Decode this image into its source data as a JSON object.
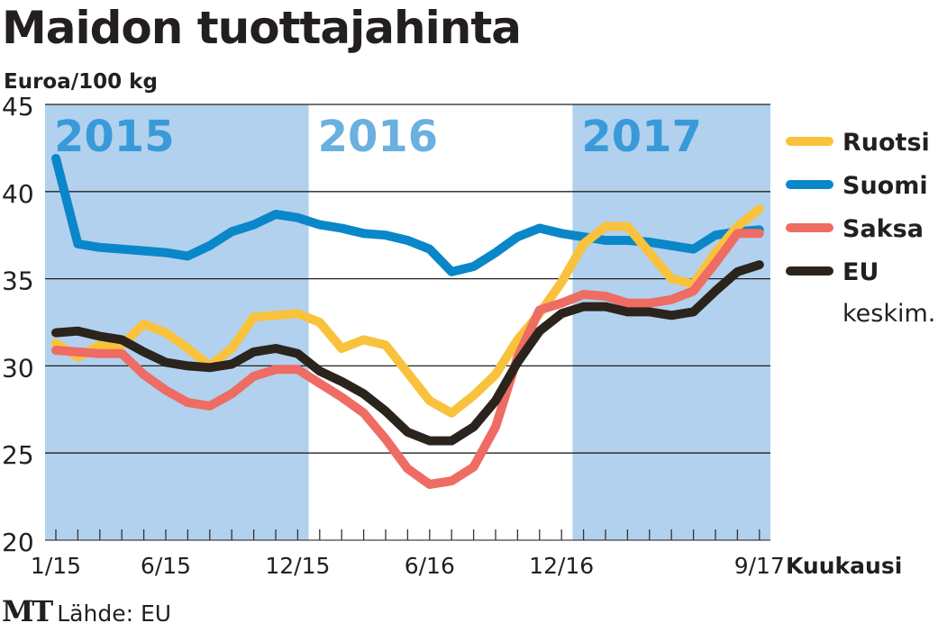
{
  "chart_data": {
    "type": "line",
    "title": "Maidon tuottajahinta",
    "ylabel": "Euroa/100 kg",
    "xlabel": "Kuukausi",
    "ylim": [
      20,
      45
    ],
    "yticks": [
      20,
      25,
      30,
      35,
      40,
      45
    ],
    "grid": true,
    "x_tick_labels": [
      {
        "index": 0,
        "label": "1/15"
      },
      {
        "index": 5,
        "label": "6/15"
      },
      {
        "index": 11,
        "label": "12/15"
      },
      {
        "index": 17,
        "label": "6/16"
      },
      {
        "index": 23,
        "label": "12/16"
      },
      {
        "index": 32,
        "label": "9/17"
      }
    ],
    "year_bands": [
      {
        "label": "2015",
        "start": 0,
        "end": 11,
        "shaded": true
      },
      {
        "label": "2016",
        "start": 12,
        "end": 23,
        "shaded": false
      },
      {
        "label": "2017",
        "start": 24,
        "end": 32,
        "shaded": true
      }
    ],
    "legend_position": "right",
    "series": [
      {
        "name": "Ruotsi",
        "color": "#f9c23c",
        "values": [
          31.3,
          30.5,
          31.2,
          31.2,
          32.4,
          31.9,
          31.0,
          30.0,
          31.0,
          32.8,
          32.9,
          33.0,
          32.5,
          31.0,
          31.5,
          31.2,
          29.6,
          28.0,
          27.3,
          28.3,
          29.5,
          31.5,
          33.0,
          34.8,
          37.0,
          38.0,
          38.0,
          36.5,
          35.0,
          34.7,
          36.5,
          38.0,
          39.0
        ]
      },
      {
        "name": "Suomi",
        "color": "#0a87c9",
        "values": [
          41.9,
          37.0,
          36.8,
          36.7,
          36.6,
          36.5,
          36.3,
          36.9,
          37.7,
          38.1,
          38.7,
          38.5,
          38.1,
          37.9,
          37.6,
          37.5,
          37.2,
          36.7,
          35.4,
          35.7,
          36.5,
          37.4,
          37.9,
          37.6,
          37.4,
          37.2,
          37.2,
          37.1,
          36.9,
          36.7,
          37.5,
          37.7,
          37.8
        ]
      },
      {
        "name": "Saksa",
        "color": "#ee6c63",
        "values": [
          30.9,
          30.8,
          30.7,
          30.7,
          29.5,
          28.6,
          27.9,
          27.7,
          28.4,
          29.4,
          29.8,
          29.8,
          29.0,
          28.2,
          27.3,
          25.8,
          24.1,
          23.2,
          23.4,
          24.2,
          26.5,
          30.5,
          33.2,
          33.6,
          34.1,
          34.0,
          33.6,
          33.6,
          33.8,
          34.3,
          35.9,
          37.6,
          37.6
        ]
      },
      {
        "name": "EU",
        "subname": "keskim.",
        "color": "#2a241d",
        "values": [
          31.9,
          32.0,
          31.7,
          31.5,
          30.8,
          30.2,
          30.0,
          29.9,
          30.1,
          30.8,
          31.0,
          30.7,
          29.7,
          29.1,
          28.4,
          27.4,
          26.2,
          25.7,
          25.7,
          26.5,
          28.0,
          30.2,
          32.0,
          33.0,
          33.4,
          33.4,
          33.1,
          33.1,
          32.9,
          33.1,
          34.3,
          35.4,
          35.8
        ]
      }
    ]
  },
  "footer": {
    "logo": "MT",
    "source": "Lähde: EU"
  }
}
